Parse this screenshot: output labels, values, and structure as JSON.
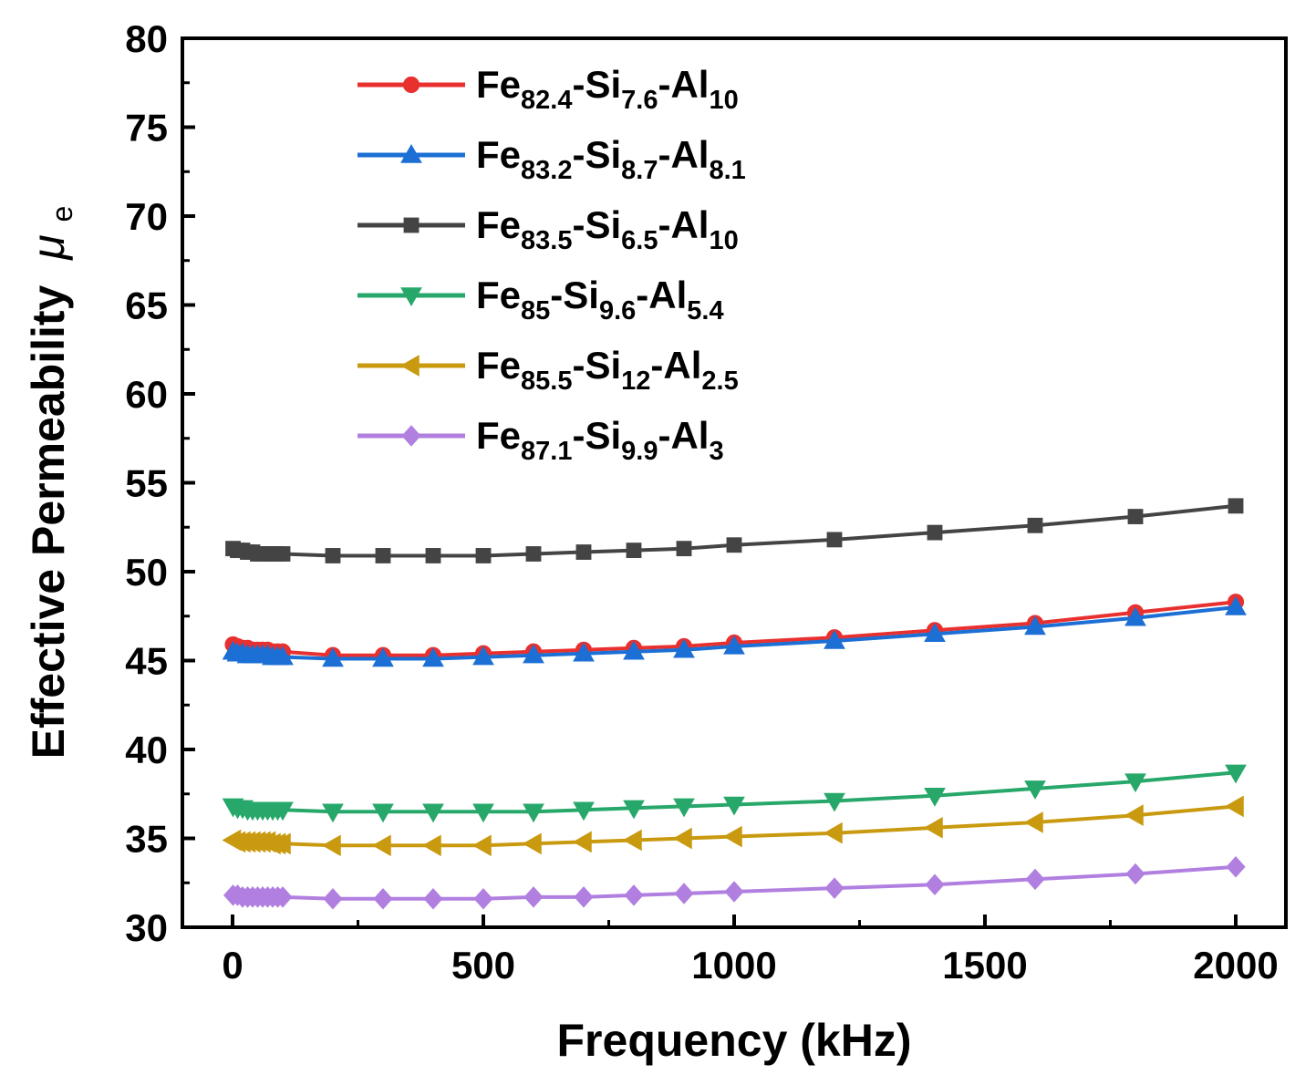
{
  "chart_data": {
    "type": "line",
    "title": "",
    "xlabel": "Frequency (kHz)",
    "ylabel": "Effective Permeability",
    "ylabel_symbol": "μ",
    "ylabel_symbol_sub": "e",
    "xlim": [
      -100,
      2100
    ],
    "ylim": [
      30,
      80
    ],
    "xticks": [
      0,
      500,
      1000,
      1500,
      2000
    ],
    "yticks": [
      30,
      35,
      40,
      45,
      50,
      55,
      60,
      65,
      70,
      75,
      80
    ],
    "grid": false,
    "legend_position": "top-left",
    "x": [
      1,
      10,
      20,
      30,
      40,
      50,
      60,
      70,
      80,
      90,
      100,
      200,
      300,
      400,
      500,
      600,
      700,
      800,
      900,
      1000,
      1200,
      1400,
      1600,
      1800,
      2000
    ],
    "series": [
      {
        "name": "Fe82.4-Si7.6-Al10",
        "legend_parts": [
          [
            "Fe",
            ""
          ],
          [
            "82.4",
            "sub"
          ],
          [
            "-Si",
            ""
          ],
          [
            "7.6",
            "sub"
          ],
          [
            "-Al",
            ""
          ],
          [
            "10",
            "sub"
          ]
        ],
        "color": "#e8312f",
        "marker": "circle",
        "values": [
          45.9,
          45.8,
          45.7,
          45.7,
          45.6,
          45.6,
          45.6,
          45.6,
          45.5,
          45.5,
          45.5,
          45.3,
          45.3,
          45.3,
          45.4,
          45.5,
          45.6,
          45.7,
          45.8,
          46.0,
          46.3,
          46.7,
          47.1,
          47.7,
          48.3
        ]
      },
      {
        "name": "Fe83.2-Si8.7-Al8.1",
        "legend_parts": [
          [
            "Fe",
            ""
          ],
          [
            "83.2",
            "sub"
          ],
          [
            "-Si",
            ""
          ],
          [
            "8.7",
            "sub"
          ],
          [
            "-Al",
            ""
          ],
          [
            "8.1",
            "sub"
          ]
        ],
        "color": "#1c6fd4",
        "marker": "triangle-up",
        "values": [
          45.5,
          45.4,
          45.4,
          45.3,
          45.3,
          45.3,
          45.3,
          45.3,
          45.2,
          45.2,
          45.2,
          45.1,
          45.1,
          45.1,
          45.2,
          45.3,
          45.4,
          45.5,
          45.6,
          45.8,
          46.1,
          46.5,
          46.9,
          47.4,
          48.0
        ]
      },
      {
        "name": "Fe83.5-Si6.5-Al10",
        "legend_parts": [
          [
            "Fe",
            ""
          ],
          [
            "83.5",
            "sub"
          ],
          [
            "-Si",
            ""
          ],
          [
            "6.5",
            "sub"
          ],
          [
            "-Al",
            ""
          ],
          [
            "10",
            "sub"
          ]
        ],
        "color": "#444444",
        "marker": "square",
        "values": [
          51.3,
          51.2,
          51.2,
          51.1,
          51.1,
          51.0,
          51.0,
          51.0,
          51.0,
          51.0,
          51.0,
          50.9,
          50.9,
          50.9,
          50.9,
          51.0,
          51.1,
          51.2,
          51.3,
          51.5,
          51.8,
          52.2,
          52.6,
          53.1,
          53.7
        ]
      },
      {
        "name": "Fe85-Si9.6-Al5.4",
        "legend_parts": [
          [
            "Fe",
            ""
          ],
          [
            "85",
            "sub"
          ],
          [
            "-Si",
            ""
          ],
          [
            "9.6",
            "sub"
          ],
          [
            "-Al",
            ""
          ],
          [
            "5.4",
            "sub"
          ]
        ],
        "color": "#27a86a",
        "marker": "triangle-down",
        "values": [
          36.8,
          36.7,
          36.7,
          36.6,
          36.6,
          36.6,
          36.6,
          36.6,
          36.6,
          36.6,
          36.6,
          36.5,
          36.5,
          36.5,
          36.5,
          36.5,
          36.6,
          36.7,
          36.8,
          36.9,
          37.1,
          37.4,
          37.8,
          38.2,
          38.7
        ]
      },
      {
        "name": "Fe85.5-Si12-Al2.5",
        "legend_parts": [
          [
            "Fe",
            ""
          ],
          [
            "85.5",
            "sub"
          ],
          [
            "-Si",
            ""
          ],
          [
            "12",
            "sub"
          ],
          [
            "-Al",
            ""
          ],
          [
            "2.5",
            "sub"
          ]
        ],
        "color": "#c99a10",
        "marker": "triangle-left",
        "values": [
          34.9,
          34.8,
          34.8,
          34.8,
          34.8,
          34.8,
          34.8,
          34.8,
          34.7,
          34.7,
          34.7,
          34.6,
          34.6,
          34.6,
          34.6,
          34.7,
          34.8,
          34.9,
          35.0,
          35.1,
          35.3,
          35.6,
          35.9,
          36.3,
          36.8
        ]
      },
      {
        "name": "Fe87.1-Si9.9-Al3",
        "legend_parts": [
          [
            "Fe",
            ""
          ],
          [
            "87.1",
            "sub"
          ],
          [
            "-Si",
            ""
          ],
          [
            "9.9",
            "sub"
          ],
          [
            "-Al",
            ""
          ],
          [
            "3",
            "sub"
          ]
        ],
        "color": "#b07fe0",
        "marker": "diamond",
        "values": [
          31.8,
          31.8,
          31.7,
          31.7,
          31.7,
          31.7,
          31.7,
          31.7,
          31.7,
          31.7,
          31.7,
          31.6,
          31.6,
          31.6,
          31.6,
          31.7,
          31.7,
          31.8,
          31.9,
          32.0,
          32.2,
          32.4,
          32.7,
          33.0,
          33.4
        ]
      }
    ]
  }
}
